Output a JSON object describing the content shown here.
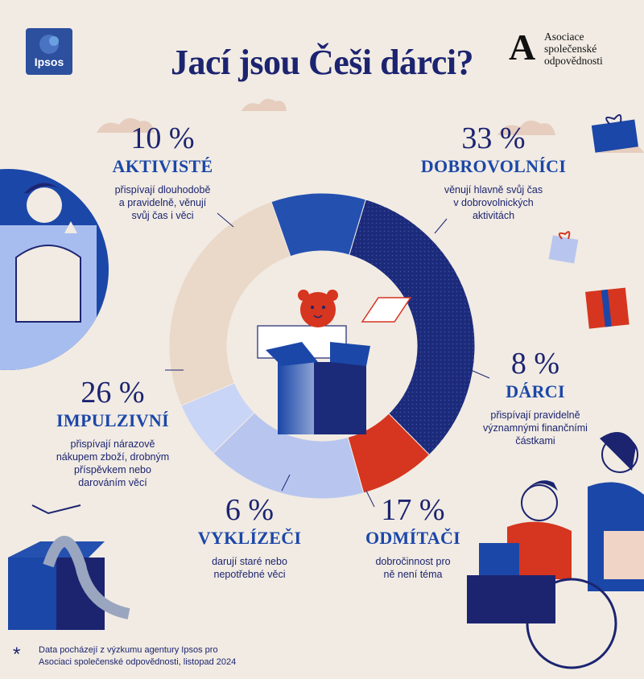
{
  "title": "Jací jsou Češi dárci?",
  "logos": {
    "ipsos": "Ipsos",
    "asociace_lines": [
      "Asociace",
      "společenské",
      "odpovědnosti"
    ]
  },
  "segments": [
    {
      "pct": "10 %",
      "name": "AKTIVISTÉ",
      "desc": [
        "přispívají dlouhodobě",
        "a pravidelně, věnují",
        "svůj čas i věci"
      ]
    },
    {
      "pct": "33 %",
      "name": "DOBROVOLNÍCI",
      "desc": [
        "věnují hlavně svůj čas",
        "v dobrovolnických",
        "aktivitách"
      ]
    },
    {
      "pct": "8 %",
      "name": "DÁRCI",
      "desc": [
        "přispívají pravidelně",
        "významnými finančními",
        "částkami"
      ]
    },
    {
      "pct": "17 %",
      "name": "ODMÍTAČI",
      "desc": [
        "dobročinnost pro",
        "ně není téma"
      ]
    },
    {
      "pct": "6 %",
      "name": "VYKLÍZEČI",
      "desc": [
        "darují staré nebo",
        "nepotřebné věci"
      ]
    },
    {
      "pct": "26 %",
      "name": "IMPULZIVNÍ",
      "desc": [
        "přispívají nárazově",
        "nákupem zboží, drobným",
        "příspěvkem nebo",
        "darováním věcí"
      ]
    }
  ],
  "chart_data": {
    "type": "pie",
    "categories": [
      "DOBROVOLNÍCI",
      "DÁRCI",
      "ODMÍTAČI",
      "VYKLÍZEČI",
      "IMPULZIVNÍ",
      "AKTIVISTÉ"
    ],
    "values": [
      33,
      8,
      17,
      6,
      26,
      10
    ],
    "unit": "%",
    "donut": true,
    "colors": [
      "#1c2a7a",
      "#d6351f",
      "#b8c6ef",
      "#c9d5f6",
      "#ead8c8",
      "#2450b0"
    ]
  },
  "footnote": {
    "symbol": "*",
    "lines": [
      "Data pocházejí z výzkumu agentury Ipsos pro",
      "Asociaci společenské odpovědnosti, listopad 2024"
    ]
  }
}
